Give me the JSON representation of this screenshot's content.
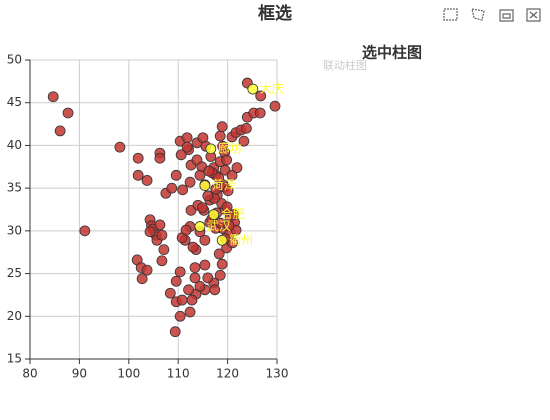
{
  "chart_data": [
    {
      "type": "scatter",
      "title": "框选",
      "xlim": [
        80,
        130
      ],
      "xticks": [
        80,
        90,
        100,
        110,
        120,
        130
      ],
      "ylim": [
        15,
        50
      ],
      "yticks": [
        15,
        20,
        25,
        30,
        35,
        40,
        45,
        50
      ],
      "grid": true,
      "series": [
        {
          "color": "#c23531",
          "x": [
            84.7,
            87.7,
            86.1,
            91.1,
            98.2,
            101.9,
            101.9,
            103.7,
            106.3,
            106.3,
            101.7,
            102.5,
            103.7,
            102.7,
            104.3,
            104.6,
            104.9,
            105.5,
            104.3,
            105.7,
            106.7,
            106.3,
            107.1,
            106.7,
            107.5,
            108.4,
            109.6,
            109.4,
            110.4,
            109.6,
            110.4,
            110.4,
            111.8,
            113.8,
            115,
            118.5,
            118.9,
            120.9,
            121.7,
            122.7,
            123.8,
            124,
            125.3,
            126.6,
            126.7,
            124,
            129.6,
            123.3,
            119.4,
            115.6,
            112.1,
            110.6,
            108.7,
            109.6,
            110.9,
            112.4,
            112.6,
            113.8,
            114.8,
            114.4,
            115.4,
            116.6,
            117.2,
            118.5,
            119.5,
            120.9,
            121.9,
            119.8,
            117.6,
            119.1,
            116.4,
            117.8,
            119.5,
            120.5,
            121.4,
            118.9,
            120.5,
            121.7,
            119.8,
            121,
            118.9,
            118.5,
            117.2,
            115.4,
            113.6,
            112.8,
            114.4,
            112.1,
            110.8,
            112.4,
            113.6,
            115.4,
            116.4,
            114.4,
            112.4,
            111.4,
            110.8,
            113,
            113.4,
            115.4,
            116,
            117.4,
            113.4,
            112.6,
            114,
            115.2,
            111.6,
            111.8,
            119,
            119.4,
            117.6,
            119.5,
            116.9,
            118.2,
            117.9,
            116.2,
            118.8,
            120.1,
            117.3,
            118.6,
            114.9,
            116.8,
            119.9,
            121.2,
            117.6,
            116,
            118.3,
            120.3
          ],
          "values": [
            45.7,
            43.8,
            41.7,
            30,
            39.8,
            38.5,
            36.5,
            35.9,
            39.1,
            38.5,
            26.6,
            25.7,
            25.4,
            24.4,
            31.3,
            30.6,
            30.2,
            29.5,
            29.9,
            28.9,
            29.5,
            30.7,
            27.8,
            26.5,
            34.4,
            22.7,
            21.7,
            18.2,
            20,
            24.1,
            25.2,
            40.5,
            40.9,
            40.3,
            40.9,
            41.1,
            42.2,
            41,
            41.5,
            41.8,
            42,
            43.3,
            43.8,
            43.8,
            45.8,
            47.3,
            44.6,
            40.5,
            39.2,
            39.9,
            39.5,
            38.9,
            35,
            36.5,
            34.8,
            35.7,
            37.7,
            38.3,
            37.5,
            36.5,
            35.4,
            38.7,
            37.4,
            38.1,
            37.1,
            36.5,
            37.4,
            38.3,
            36.5,
            35.4,
            33.6,
            32.1,
            32.5,
            31.6,
            31,
            30.3,
            29.8,
            30.1,
            28,
            28.6,
            26.1,
            24.8,
            23.9,
            23.1,
            22.6,
            21.9,
            23.5,
            23.1,
            21.9,
            20.5,
            27.8,
            28.9,
            31,
            29.9,
            30.5,
            28.9,
            29.2,
            28.1,
            25.7,
            26,
            24.5,
            23.1,
            24.5,
            32.4,
            33,
            32.4,
            30.1,
            39.8,
            39.9,
            35.1,
            30.3,
            29.1,
            36.8,
            36.2,
            34.2,
            37,
            33.2,
            34.7,
            33.8,
            30.9,
            32.7,
            31.4,
            32.8,
            31.9,
            34.9,
            34.1,
            27.3,
            30.6
          ]
        },
        {
          "color": "#ffff33",
          "x": [
            125.1,
            116.6,
            115.4,
            117.2,
            114.4,
            118.9
          ],
          "values": [
            46.6,
            39.6,
            35.3,
            31.9,
            30.5,
            28.9
          ],
          "labels": [
            "大庆",
            "廊坊",
            "菏泽",
            "合肥",
            "武汉",
            "衢州"
          ]
        }
      ]
    },
    {
      "type": "bar",
      "title": "选中柱图",
      "series": [
        {
          "name": "联动柱图",
          "color": "#cccccc",
          "values": []
        }
      ]
    }
  ]
}
